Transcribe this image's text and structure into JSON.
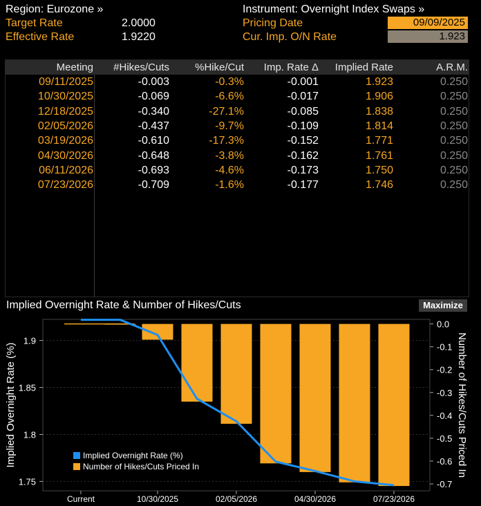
{
  "header": {
    "region_label": "Region: Eurozone »",
    "instrument_label": "Instrument: Overnight Index Swaps »",
    "target_rate_label": "Target Rate",
    "target_rate_value": "2.0000",
    "effective_rate_label": "Effective Rate",
    "effective_rate_value": "1.9220",
    "pricing_date_label": "Pricing Date",
    "pricing_date_value": "09/09/2025",
    "cur_imp_label": "Cur. Imp. O/N Rate",
    "cur_imp_value": "1.923"
  },
  "table": {
    "columns": [
      "Meeting",
      "#Hikes/Cuts",
      "%Hike/Cut",
      "Imp. Rate Δ",
      "Implied Rate",
      "A.R.M."
    ],
    "rows": [
      {
        "meeting": "09/11/2025",
        "hikes": "-0.003",
        "pct": "-0.3%",
        "delta": "-0.001",
        "implied": "1.923",
        "arm": "0.250"
      },
      {
        "meeting": "10/30/2025",
        "hikes": "-0.069",
        "pct": "-6.6%",
        "delta": "-0.017",
        "implied": "1.906",
        "arm": "0.250"
      },
      {
        "meeting": "12/18/2025",
        "hikes": "-0.340",
        "pct": "-27.1%",
        "delta": "-0.085",
        "implied": "1.838",
        "arm": "0.250"
      },
      {
        "meeting": "02/05/2026",
        "hikes": "-0.437",
        "pct": "-9.7%",
        "delta": "-0.109",
        "implied": "1.814",
        "arm": "0.250"
      },
      {
        "meeting": "03/19/2026",
        "hikes": "-0.610",
        "pct": "-17.3%",
        "delta": "-0.152",
        "implied": "1.771",
        "arm": "0.250"
      },
      {
        "meeting": "04/30/2026",
        "hikes": "-0.648",
        "pct": "-3.8%",
        "delta": "-0.162",
        "implied": "1.761",
        "arm": "0.250"
      },
      {
        "meeting": "06/11/2026",
        "hikes": "-0.693",
        "pct": "-4.6%",
        "delta": "-0.173",
        "implied": "1.750",
        "arm": "0.250"
      },
      {
        "meeting": "07/23/2026",
        "hikes": "-0.709",
        "pct": "-1.6%",
        "delta": "-0.177",
        "implied": "1.746",
        "arm": "0.250"
      }
    ]
  },
  "chart_title": "Implied Overnight Rate & Number of Hikes/Cuts",
  "maximize_label": "Maximize",
  "chart_data": {
    "type": "bar+line",
    "title": "Implied Overnight Rate & Number of Hikes/Cuts",
    "categories": [
      "Current",
      "09/11/2025",
      "10/30/2025",
      "12/18/2025",
      "02/05/2026",
      "03/19/2026",
      "04/30/2026",
      "06/11/2026",
      "07/23/2026"
    ],
    "x_tick_labels": [
      "Current",
      "10/30/2025",
      "02/05/2026",
      "04/30/2026",
      "07/23/2026"
    ],
    "series": [
      {
        "name": "Implied Overnight Rate (%)",
        "axis": "left",
        "type": "line",
        "color": "#1f8ff0",
        "values": [
          1.922,
          1.922,
          1.906,
          1.838,
          1.814,
          1.771,
          1.761,
          1.75,
          1.746
        ]
      },
      {
        "name": "Number of Hikes/Cuts Priced In",
        "axis": "right",
        "type": "bar",
        "color": "#f6a623",
        "values": [
          0,
          -0.003,
          -0.069,
          -0.34,
          -0.437,
          -0.61,
          -0.648,
          -0.693,
          -0.709
        ]
      }
    ],
    "ylabel_left": "Implied Overnight Rate (%)",
    "ylabel_right": "Number of Hikes/Cuts Priced In",
    "ylim_left": [
      1.74,
      1.9225
    ],
    "ylim_right": [
      -0.73,
      0.02
    ],
    "yticks_left": [
      "1.9",
      "1.85",
      "1.8",
      "1.75"
    ],
    "yticks_left_values": [
      1.9,
      1.85,
      1.8,
      1.75
    ],
    "yticks_right": [
      "0.0",
      "-0.1",
      "-0.2",
      "-0.3",
      "-0.4",
      "-0.5",
      "-0.6",
      "-0.7"
    ],
    "yticks_right_values": [
      0,
      -0.1,
      -0.2,
      -0.3,
      -0.4,
      -0.5,
      -0.6,
      -0.7
    ],
    "legend_position": "bottom-left"
  }
}
